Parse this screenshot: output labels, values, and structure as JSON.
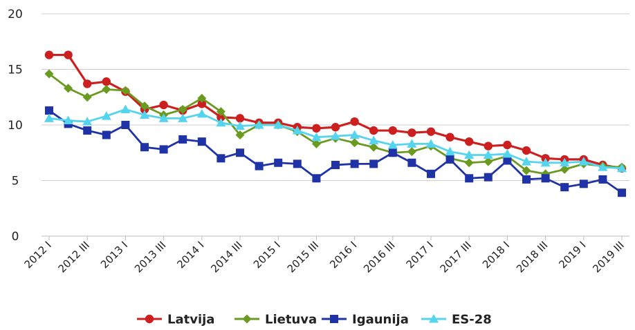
{
  "chart_data": {
    "type": "line",
    "title": "",
    "xlabel": "",
    "ylabel": "",
    "ylim": [
      0,
      20
    ],
    "yticks": [
      "0",
      "5",
      "10",
      "15",
      "20"
    ],
    "grid": "horizontal",
    "legend_position": "bottom",
    "x": [
      "2012 I",
      "2012 II",
      "2012 III",
      "2012 IV",
      "2013 I",
      "2013 II",
      "2013 III",
      "2013 IV",
      "2014 I",
      "2014 II",
      "2014 III",
      "2014 IV",
      "2015 I",
      "2015 II",
      "2015 III",
      "2015 IV",
      "2016 I",
      "2016 II",
      "2016 III",
      "2016 IV",
      "2017 I",
      "2017 II",
      "2017 III",
      "2017 IV",
      "2018 I",
      "2018 II",
      "2018 III",
      "2018 IV",
      "2019 I",
      "2019 II",
      "2019 III"
    ],
    "xtick_labels": [
      "2012 I",
      "2012 III",
      "2013 I",
      "2013 III",
      "2014 I",
      "2014 III",
      "2015 I",
      "2015 III",
      "2016 I",
      "2016 III",
      "2017 I",
      "2017 III",
      "2018 I",
      "2018 III",
      "2019 I",
      "2019 III"
    ],
    "series": [
      {
        "name": "Latvija",
        "color": "#cc1f1f",
        "marker": "circle",
        "values": [
          16.3,
          16.3,
          13.7,
          13.9,
          13.0,
          11.4,
          11.8,
          11.3,
          11.9,
          10.7,
          10.6,
          10.2,
          10.2,
          9.8,
          9.7,
          9.8,
          10.3,
          9.5,
          9.5,
          9.3,
          9.4,
          8.9,
          8.5,
          8.1,
          8.2,
          7.7,
          7.0,
          6.9,
          6.9,
          6.4,
          6.1
        ]
      },
      {
        "name": "Lietuva",
        "color": "#6a9a1f",
        "marker": "diamond",
        "values": [
          14.6,
          13.3,
          12.5,
          13.2,
          13.1,
          11.7,
          10.9,
          11.4,
          12.4,
          11.2,
          9.1,
          10.0,
          10.0,
          9.4,
          8.3,
          8.8,
          8.4,
          8.0,
          7.5,
          7.6,
          8.1,
          7.0,
          6.6,
          6.7,
          7.2,
          5.9,
          5.6,
          6.0,
          6.5,
          6.3,
          6.2
        ]
      },
      {
        "name": "Igaunija",
        "color": "#1f33a6",
        "marker": "square",
        "values": [
          11.3,
          10.1,
          9.5,
          9.1,
          10.0,
          8.0,
          7.8,
          8.7,
          8.5,
          7.0,
          7.5,
          6.3,
          6.6,
          6.5,
          5.2,
          6.4,
          6.5,
          6.5,
          7.5,
          6.6,
          5.6,
          6.9,
          5.2,
          5.3,
          6.8,
          5.1,
          5.2,
          4.4,
          4.7,
          5.1,
          3.9
        ]
      },
      {
        "name": "ES-28",
        "color": "#55d4ee",
        "marker": "triangle",
        "values": [
          10.6,
          10.4,
          10.3,
          10.8,
          11.4,
          10.9,
          10.6,
          10.6,
          11.0,
          10.2,
          9.9,
          10.0,
          10.0,
          9.5,
          8.9,
          9.0,
          9.1,
          8.6,
          8.2,
          8.3,
          8.3,
          7.6,
          7.3,
          7.3,
          7.4,
          6.7,
          6.6,
          6.6,
          6.7,
          6.2,
          6.1
        ]
      }
    ]
  }
}
